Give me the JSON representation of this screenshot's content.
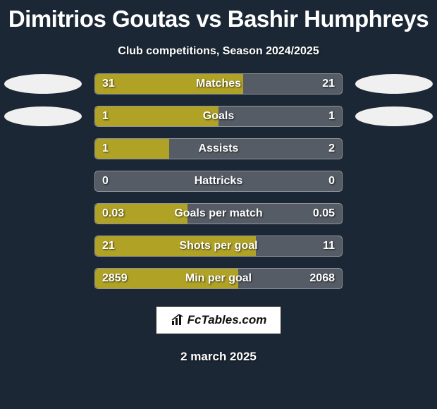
{
  "title": "Dimitrios Goutas vs Bashir Humphreys",
  "title_color": "#ffffff",
  "title_fontsize": 33,
  "subtitle": "Club competitions, Season 2024/2025",
  "subtitle_fontsize": 16,
  "background_color": "#1b2735",
  "bar_track_color": "#555c66",
  "bar_fill_color": "#b0a225",
  "ellipse_color": "#f0f0f0",
  "text_shadow_color": "rgba(0,0,0,0.7)",
  "rows": [
    {
      "label": "Matches",
      "left_text": "31",
      "right_text": "21",
      "fill_pct": 60,
      "show_ellipses": true
    },
    {
      "label": "Goals",
      "left_text": "1",
      "right_text": "1",
      "fill_pct": 50,
      "show_ellipses": true
    },
    {
      "label": "Assists",
      "left_text": "1",
      "right_text": "2",
      "fill_pct": 30,
      "show_ellipses": false
    },
    {
      "label": "Hattricks",
      "left_text": "0",
      "right_text": "0",
      "fill_pct": 0,
      "show_ellipses": false
    },
    {
      "label": "Goals per match",
      "left_text": "0.03",
      "right_text": "0.05",
      "fill_pct": 37.5,
      "show_ellipses": false
    },
    {
      "label": "Shots per goal",
      "left_text": "21",
      "right_text": "11",
      "fill_pct": 65,
      "show_ellipses": false
    },
    {
      "label": "Min per goal",
      "left_text": "2859",
      "right_text": "2068",
      "fill_pct": 58,
      "show_ellipses": false
    }
  ],
  "logo_text": "FcTables.com",
  "date_text": "2 march 2025"
}
